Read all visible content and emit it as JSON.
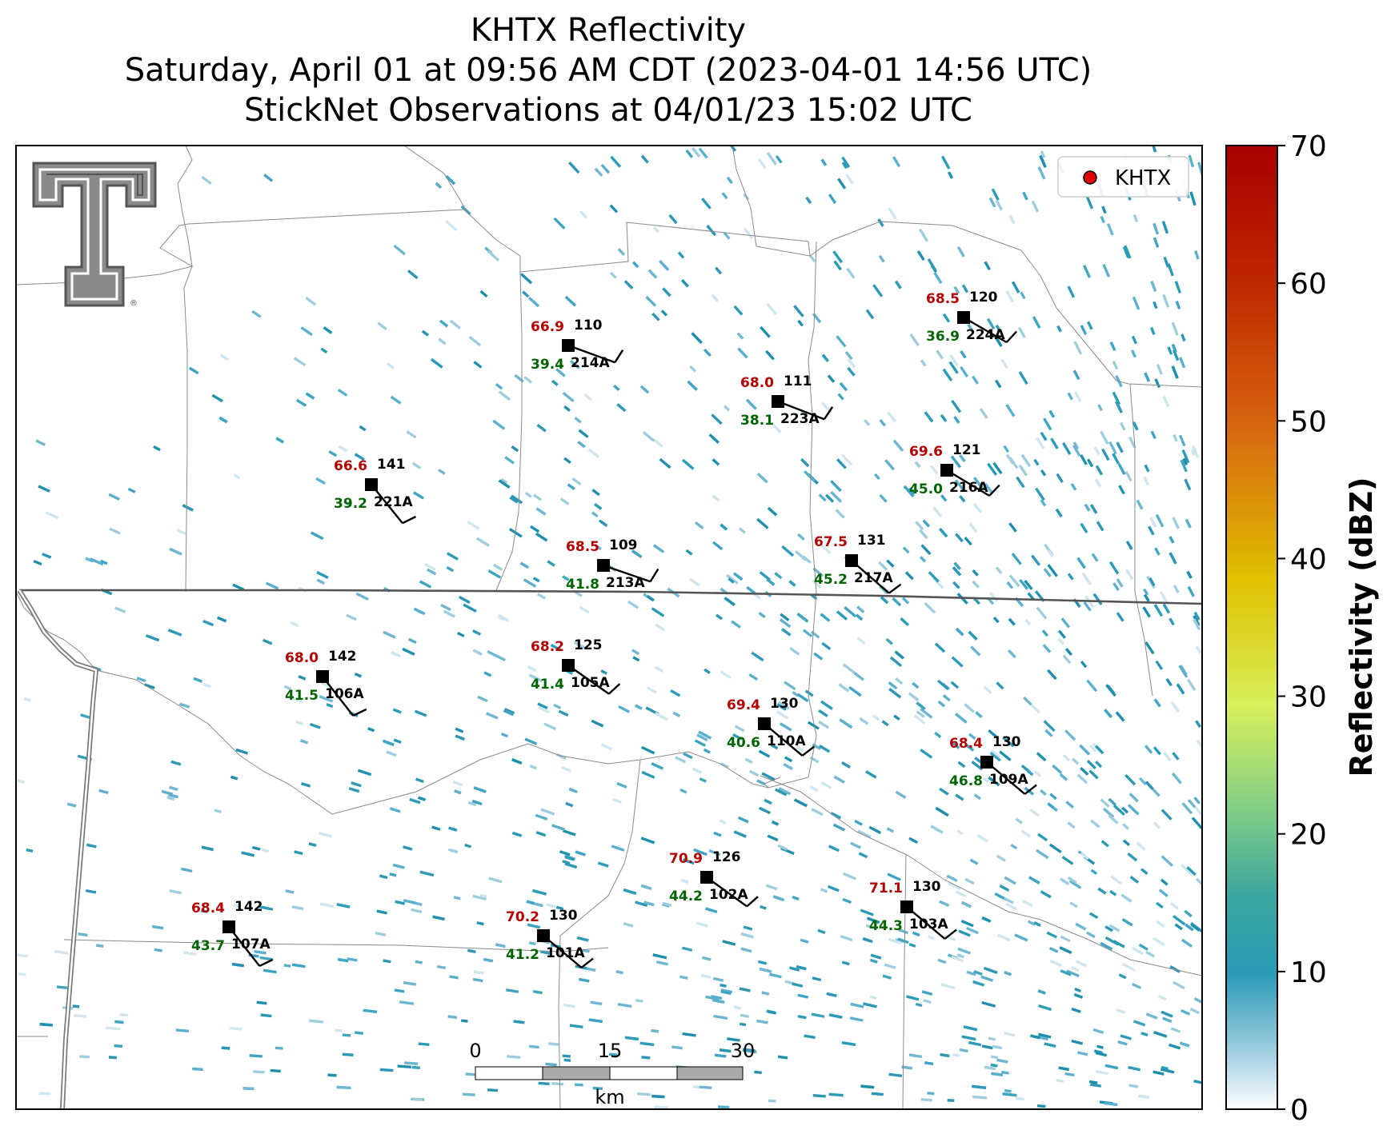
{
  "title": {
    "line1": "KHTX Reflectivity",
    "line2": "Saturday, April 01 at 09:56 AM CDT (2023-04-01 14:56 UTC)",
    "line3": "StickNet Observations at 04/01/23 15:02 UTC"
  },
  "legend": {
    "label": "KHTX",
    "marker_color": "#e00000"
  },
  "colorbar": {
    "label": "Reflectivity (dBZ)",
    "ticks": [
      "0",
      "10",
      "20",
      "30",
      "40",
      "50",
      "60",
      "70"
    ],
    "range": [
      0,
      70
    ],
    "colors": [
      "#ffffff",
      "#2b9bb7",
      "#1f9aa6",
      "#79c98a",
      "#d8f05a",
      "#e0c000",
      "#d86a10",
      "#a80000"
    ]
  },
  "scale_bar": {
    "ticks": [
      "0",
      "15",
      "30"
    ],
    "unit": "km"
  },
  "logo": "texas-tech-double-t-logo",
  "stations": [
    {
      "id": "214A",
      "temp": "66.9",
      "dew": "39.4",
      "dir": "110"
    },
    {
      "id": "223A",
      "temp": "68.0",
      "dew": "38.1",
      "dir": "111"
    },
    {
      "id": "224A",
      "temp": "68.5",
      "dew": "36.9",
      "dir": "120"
    },
    {
      "id": "221A",
      "temp": "66.6",
      "dew": "39.2",
      "dir": "141"
    },
    {
      "id": "216A",
      "temp": "69.6",
      "dew": "45.0",
      "dir": "121"
    },
    {
      "id": "213A",
      "temp": "68.5",
      "dew": "41.8",
      "dir": "109"
    },
    {
      "id": "217A",
      "temp": "67.5",
      "dew": "45.2",
      "dir": "131"
    },
    {
      "id": "106A",
      "temp": "68.0",
      "dew": "41.5",
      "dir": "142"
    },
    {
      "id": "105A",
      "temp": "68.2",
      "dew": "41.4",
      "dir": "125"
    },
    {
      "id": "110A",
      "temp": "69.4",
      "dew": "40.6",
      "dir": "130"
    },
    {
      "id": "109A",
      "temp": "68.4",
      "dew": "46.8",
      "dir": "130"
    },
    {
      "id": "102A",
      "temp": "70.9",
      "dew": "44.2",
      "dir": "126"
    },
    {
      "id": "103A",
      "temp": "71.1",
      "dew": "44.3",
      "dir": "130"
    },
    {
      "id": "107A",
      "temp": "68.4",
      "dew": "43.7",
      "dir": "142"
    },
    {
      "id": "101A",
      "temp": "70.2",
      "dew": "41.2",
      "dir": "130"
    }
  ]
}
